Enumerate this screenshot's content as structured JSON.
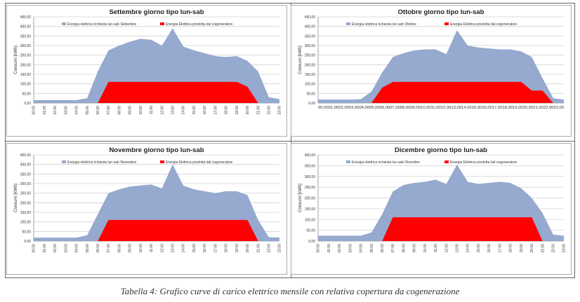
{
  "caption": "Tabella 4: Grafico curve di carico elettrico mensile con relativa copertura da cogenerazione",
  "chart_data": [
    {
      "type": "area",
      "title": "Settembre giorno tipo lun-sab",
      "ylabel": "Consumi [kWh]",
      "ylim": [
        0,
        450
      ],
      "yticks": [
        "0,00",
        "50,00",
        "100,00",
        "150,00",
        "200,00",
        "250,00",
        "300,00",
        "350,00",
        "400,00",
        "450,00"
      ],
      "categories": [
        "00:00",
        "01:00",
        "02:00",
        "03:00",
        "04:00",
        "05:00",
        "06:00",
        "07:00",
        "08:00",
        "09:00",
        "10:00",
        "11:00",
        "12:00",
        "13:00",
        "14:00",
        "15:00",
        "16:00",
        "17:00",
        "18:00",
        "19:00",
        "20:00",
        "21:00",
        "22:00",
        "23:00"
      ],
      "series": [
        {
          "name": "Energia elettrica richiesta lun-sab Settembre",
          "color": "#96a9cf",
          "values": [
            15,
            15,
            15,
            15,
            15,
            25,
            165,
            275,
            300,
            320,
            335,
            330,
            300,
            390,
            295,
            275,
            260,
            245,
            240,
            245,
            220,
            165,
            30,
            20
          ]
        },
        {
          "name": "Energia Elettrica prodotta dal cogeneratore",
          "color": "#ff0000",
          "values": [
            0,
            0,
            0,
            0,
            0,
            0,
            0,
            110,
            110,
            110,
            110,
            110,
            110,
            110,
            110,
            110,
            110,
            110,
            110,
            110,
            85,
            0,
            0,
            0
          ]
        }
      ]
    },
    {
      "type": "area",
      "title": "Ottobre giorno tipo lun-sab",
      "ylabel": "Consumi [kWh]",
      "ylim": [
        0,
        450
      ],
      "yticks": [
        "0,00",
        "50,00",
        "100,00",
        "150,00",
        "200,00",
        "250,00",
        "300,00",
        "350,00",
        "400,00",
        "450,00"
      ],
      "xticklabels_joined": "00,0001,0002,0003,0004,0005,0006,0007,0008,0009,0010,0011,0012,0013,0014,0015,0016,0017,0018,0019,0020,0021,0022,0023,00",
      "categories": [
        "00:00",
        "01:00",
        "02:00",
        "03:00",
        "04:00",
        "05:00",
        "06:00",
        "07:00",
        "08:00",
        "09:00",
        "10:00",
        "11:00",
        "12:00",
        "13:00",
        "14:00",
        "15:00",
        "16:00",
        "17:00",
        "18:00",
        "19:00",
        "20:00",
        "21:00",
        "22:00",
        "23:00"
      ],
      "series": [
        {
          "name": "Energia elettrica richiesta lun-sab Ottobre",
          "color": "#96a9cf",
          "values": [
            18,
            18,
            18,
            18,
            20,
            60,
            160,
            240,
            260,
            275,
            280,
            280,
            255,
            380,
            300,
            290,
            285,
            280,
            280,
            270,
            240,
            130,
            25,
            18
          ]
        },
        {
          "name": "Energia Elettrica prodotta dal cogeneratore",
          "color": "#ff0000",
          "values": [
            0,
            0,
            0,
            0,
            0,
            0,
            80,
            110,
            110,
            110,
            110,
            110,
            110,
            110,
            110,
            110,
            110,
            110,
            110,
            110,
            65,
            65,
            0,
            0
          ]
        }
      ]
    },
    {
      "type": "area",
      "title": "Novembre giorno tipo lun-sab",
      "ylabel": "Consumi [kWh]",
      "ylim": [
        0,
        450
      ],
      "yticks": [
        "0,00",
        "50,00",
        "100,00",
        "150,00",
        "200,00",
        "250,00",
        "300,00",
        "350,00",
        "400,00",
        "450,00"
      ],
      "categories": [
        "00:00",
        "01:00",
        "02:00",
        "03:00",
        "04:00",
        "05:00",
        "06:00",
        "07:00",
        "08:00",
        "09:00",
        "10:00",
        "11:00",
        "12:00",
        "13:00",
        "14:00",
        "15:00",
        "16:00",
        "17:00",
        "18:00",
        "19:00",
        "20:00",
        "21:00",
        "22:00",
        "23:00"
      ],
      "series": [
        {
          "name": "Energia elettrica richiesta lun-sab Novembre",
          "color": "#96a9cf",
          "values": [
            18,
            18,
            18,
            18,
            18,
            30,
            140,
            250,
            270,
            285,
            290,
            295,
            275,
            400,
            290,
            270,
            260,
            250,
            260,
            260,
            240,
            110,
            20,
            18
          ]
        },
        {
          "name": "Energia Elettrica prodotta dal cogeneratore",
          "color": "#ff0000",
          "values": [
            0,
            0,
            0,
            0,
            0,
            0,
            0,
            110,
            110,
            110,
            110,
            110,
            110,
            110,
            110,
            110,
            110,
            110,
            110,
            110,
            110,
            0,
            0,
            0
          ]
        }
      ]
    },
    {
      "type": "area",
      "title": "Dicembre giorno tipo lun-sab",
      "ylabel": "Consumi [kWh]",
      "ylim": [
        0,
        400
      ],
      "yticks": [
        "0,00",
        "50,00",
        "100,00",
        "150,00",
        "200,00",
        "250,00",
        "300,00",
        "350,00",
        "400,00"
      ],
      "categories": [
        "00:00",
        "01:00",
        "02:00",
        "03:00",
        "04:00",
        "05:00",
        "06:00",
        "07:00",
        "08:00",
        "09:00",
        "10:00",
        "11:00",
        "12:00",
        "13:00",
        "14:00",
        "15:00",
        "16:00",
        "17:00",
        "18:00",
        "19:00",
        "20:00",
        "21:00",
        "22:00",
        "23:00"
      ],
      "series": [
        {
          "name": "Energia elettrica richiesta lun-sab Dicembre",
          "color": "#96a9cf",
          "values": [
            25,
            25,
            25,
            25,
            25,
            40,
            125,
            230,
            260,
            270,
            275,
            285,
            265,
            355,
            275,
            265,
            270,
            275,
            270,
            245,
            200,
            130,
            30,
            25
          ]
        },
        {
          "name": "Energia Elettrica prodotta dal cogeneratore",
          "color": "#ff0000",
          "values": [
            0,
            0,
            0,
            0,
            0,
            0,
            0,
            110,
            110,
            110,
            110,
            110,
            110,
            110,
            110,
            110,
            110,
            110,
            110,
            110,
            110,
            0,
            0,
            0
          ]
        }
      ]
    }
  ]
}
